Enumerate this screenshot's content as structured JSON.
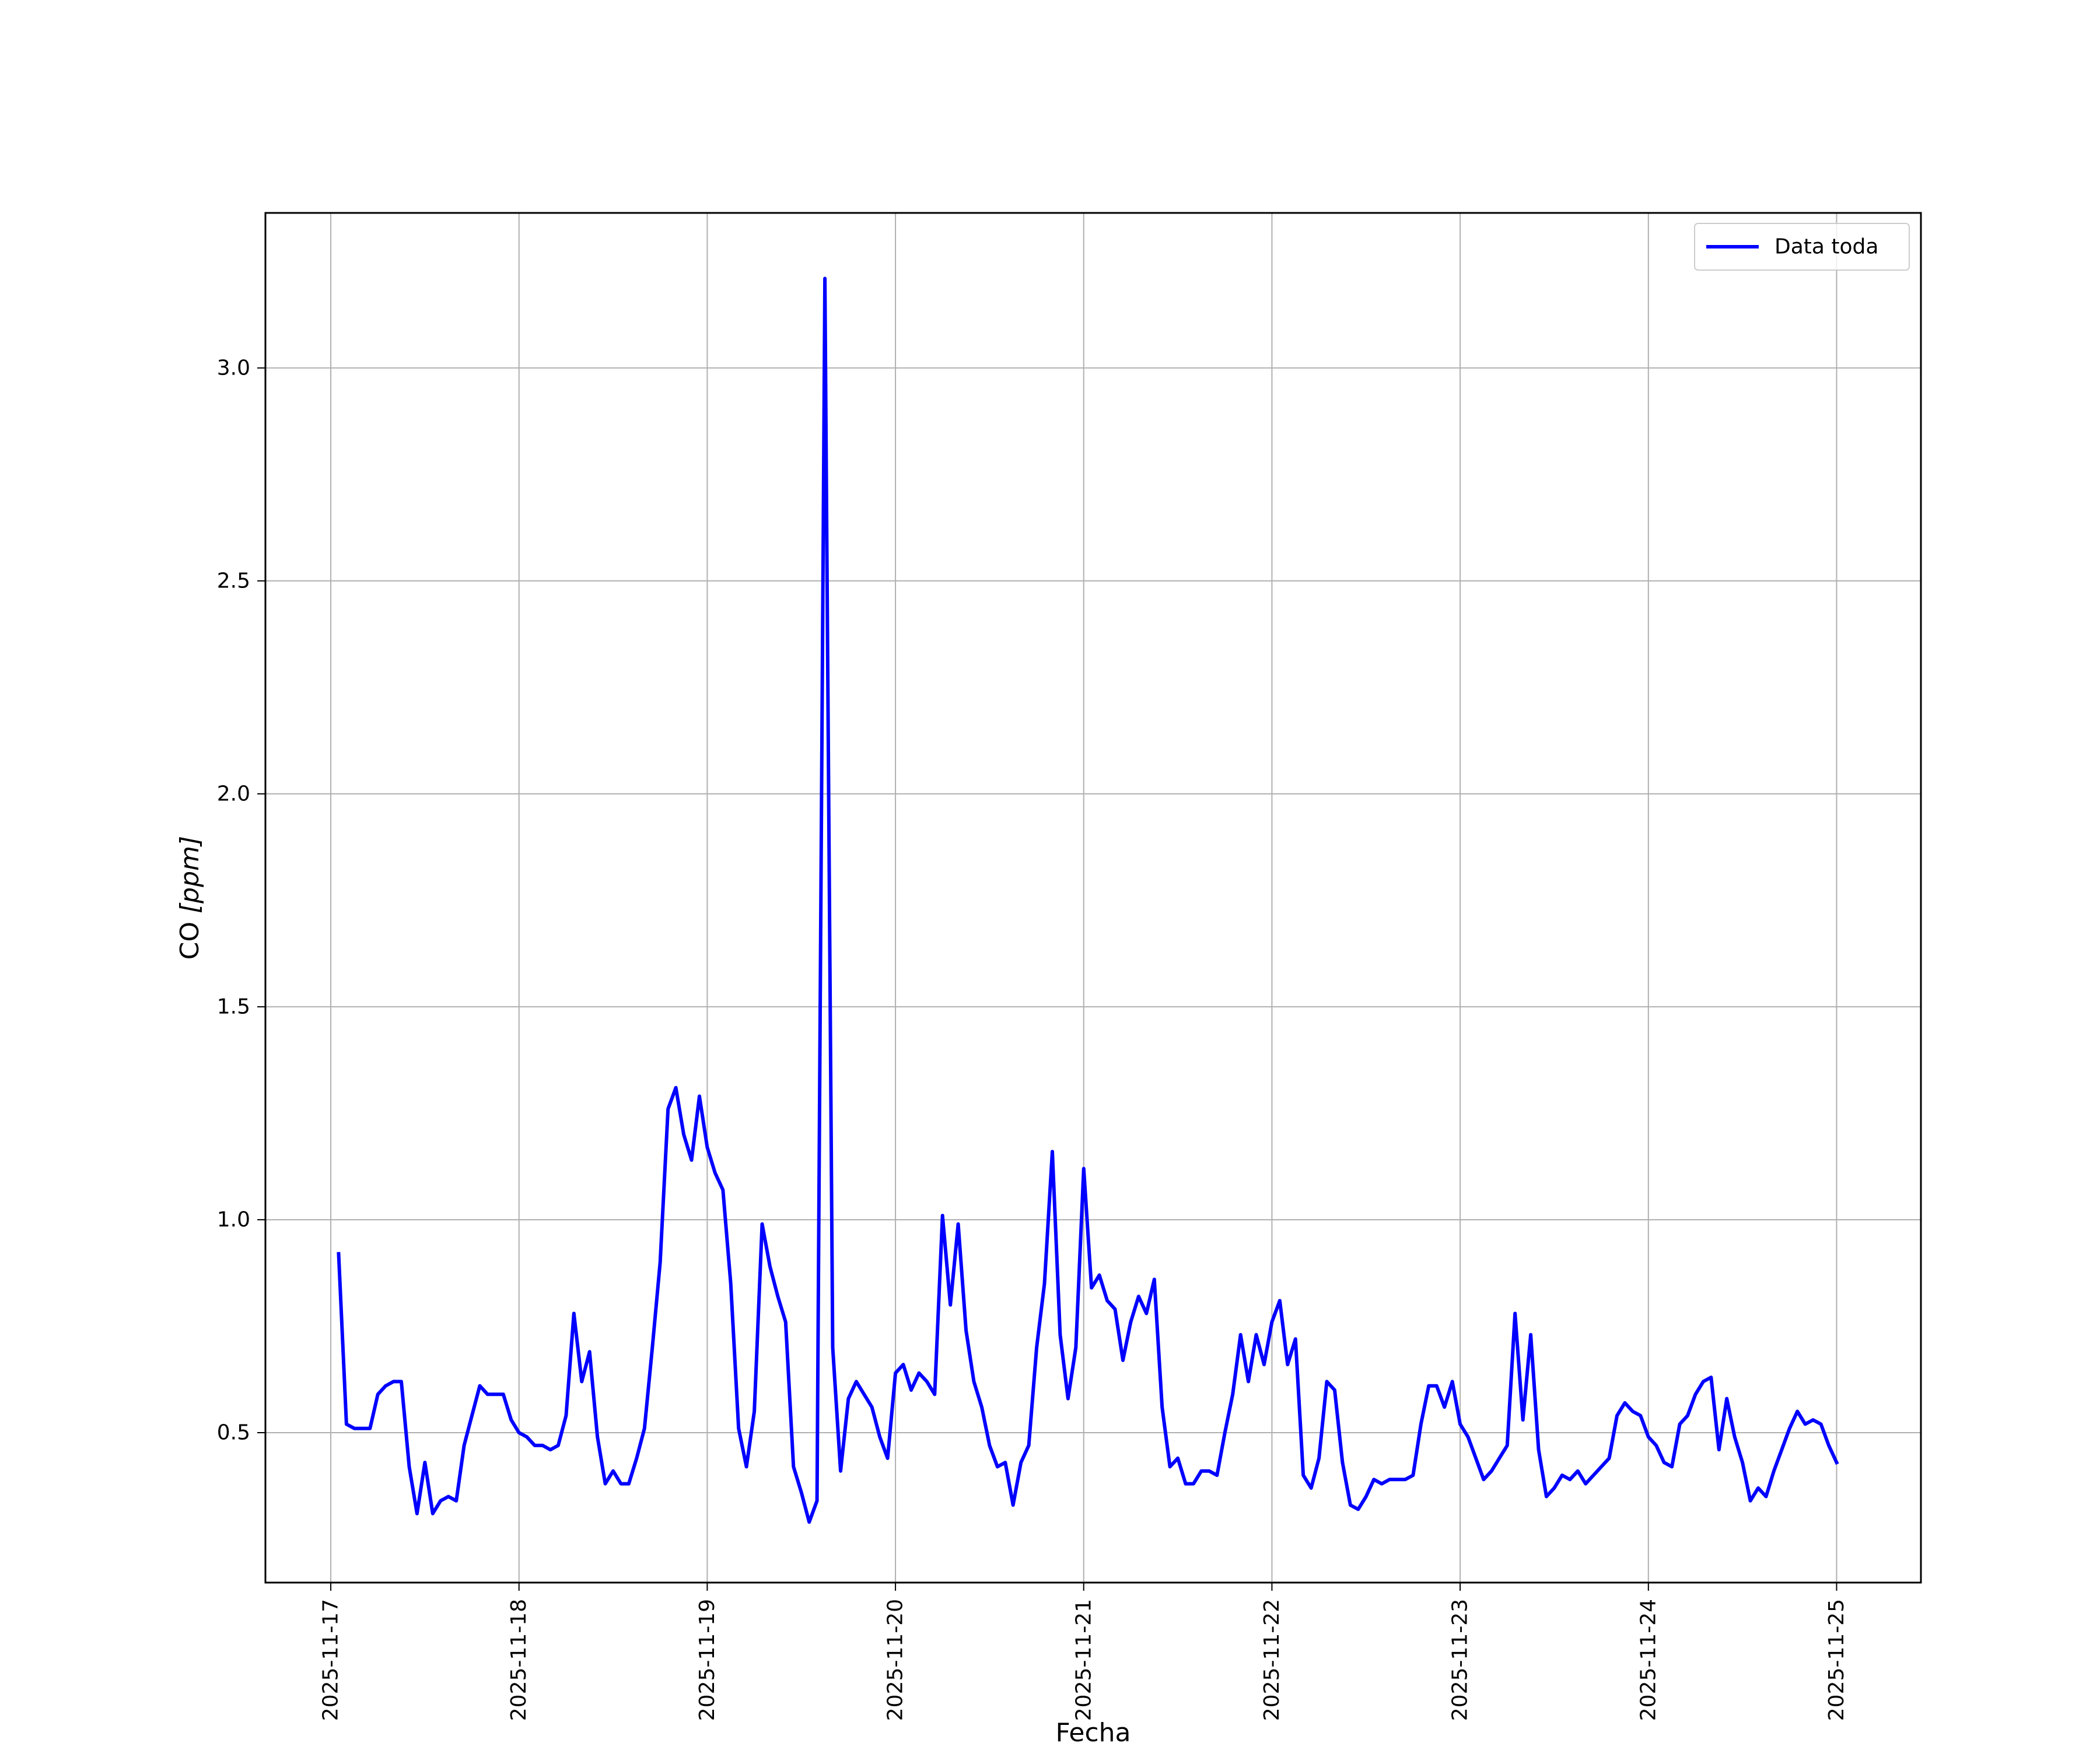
{
  "chart_data": {
    "type": "line",
    "title": "",
    "xlabel": "Fecha",
    "ylabel_main": "CO ",
    "ylabel_unit": "[ppm]",
    "x_ticks": [
      "2025-11-17",
      "2025-11-18",
      "2025-11-19",
      "2025-11-20",
      "2025-11-21",
      "2025-11-22",
      "2025-11-23",
      "2025-11-24",
      "2025-11-25"
    ],
    "y_ticks": [
      "0.5",
      "1.0",
      "1.5",
      "2.0",
      "2.5",
      "3.0"
    ],
    "xlim": [
      "2025-11-16 15:40",
      "2025-11-25 10:45"
    ],
    "ylim": [
      0.148,
      3.364
    ],
    "grid": true,
    "legend": {
      "position": "top-right"
    },
    "series": [
      {
        "name": "Data toda",
        "color": "#0000ff",
        "x": [
          "2025-11-17 01:00",
          "2025-11-17 02:00",
          "2025-11-17 03:00",
          "2025-11-17 04:00",
          "2025-11-17 05:00",
          "2025-11-17 06:00",
          "2025-11-17 07:00",
          "2025-11-17 08:00",
          "2025-11-17 09:00",
          "2025-11-17 10:00",
          "2025-11-17 11:00",
          "2025-11-17 12:00",
          "2025-11-17 13:00",
          "2025-11-17 14:00",
          "2025-11-17 15:00",
          "2025-11-17 16:00",
          "2025-11-17 17:00",
          "2025-11-17 18:00",
          "2025-11-17 19:00",
          "2025-11-17 20:00",
          "2025-11-17 21:00",
          "2025-11-17 22:00",
          "2025-11-17 23:00",
          "2025-11-18 00:00",
          "2025-11-18 01:00",
          "2025-11-18 02:00",
          "2025-11-18 03:00",
          "2025-11-18 04:00",
          "2025-11-18 05:00",
          "2025-11-18 06:00",
          "2025-11-18 07:00",
          "2025-11-18 08:00",
          "2025-11-18 09:00",
          "2025-11-18 10:00",
          "2025-11-18 11:00",
          "2025-11-18 12:00",
          "2025-11-18 13:00",
          "2025-11-18 14:00",
          "2025-11-18 15:00",
          "2025-11-18 16:00",
          "2025-11-18 17:00",
          "2025-11-18 18:00",
          "2025-11-18 19:00",
          "2025-11-18 20:00",
          "2025-11-18 21:00",
          "2025-11-18 22:00",
          "2025-11-18 23:00",
          "2025-11-19 00:00",
          "2025-11-19 01:00",
          "2025-11-19 02:00",
          "2025-11-19 03:00",
          "2025-11-19 04:00",
          "2025-11-19 05:00",
          "2025-11-19 06:00",
          "2025-11-19 07:00",
          "2025-11-19 08:00",
          "2025-11-19 09:00",
          "2025-11-19 10:00",
          "2025-11-19 11:00",
          "2025-11-19 12:00",
          "2025-11-19 13:00",
          "2025-11-19 14:00",
          "2025-11-19 15:00",
          "2025-11-19 16:00",
          "2025-11-19 17:00",
          "2025-11-19 18:00",
          "2025-11-19 19:00",
          "2025-11-19 20:00",
          "2025-11-19 21:00",
          "2025-11-19 22:00",
          "2025-11-19 23:00",
          "2025-11-20 00:00",
          "2025-11-20 01:00",
          "2025-11-20 02:00",
          "2025-11-20 03:00",
          "2025-11-20 04:00",
          "2025-11-20 05:00",
          "2025-11-20 06:00",
          "2025-11-20 07:00",
          "2025-11-20 08:00",
          "2025-11-20 09:00",
          "2025-11-20 10:00",
          "2025-11-20 11:00",
          "2025-11-20 12:00",
          "2025-11-20 13:00",
          "2025-11-20 14:00",
          "2025-11-20 15:00",
          "2025-11-20 16:00",
          "2025-11-20 17:00",
          "2025-11-20 18:00",
          "2025-11-20 19:00",
          "2025-11-20 20:00",
          "2025-11-20 21:00",
          "2025-11-20 22:00",
          "2025-11-20 23:00",
          "2025-11-21 00:00",
          "2025-11-21 01:00",
          "2025-11-21 02:00",
          "2025-11-21 03:00",
          "2025-11-21 04:00",
          "2025-11-21 05:00",
          "2025-11-21 06:00",
          "2025-11-21 07:00",
          "2025-11-21 08:00",
          "2025-11-21 09:00",
          "2025-11-21 10:00",
          "2025-11-21 11:00",
          "2025-11-21 12:00",
          "2025-11-21 13:00",
          "2025-11-21 14:00",
          "2025-11-21 15:00",
          "2025-11-21 16:00",
          "2025-11-21 17:00",
          "2025-11-21 18:00",
          "2025-11-21 19:00",
          "2025-11-21 20:00",
          "2025-11-21 21:00",
          "2025-11-21 22:00",
          "2025-11-21 23:00",
          "2025-11-22 00:00",
          "2025-11-22 01:00",
          "2025-11-22 02:00",
          "2025-11-22 03:00",
          "2025-11-22 04:00",
          "2025-11-22 05:00",
          "2025-11-22 06:00",
          "2025-11-22 07:00",
          "2025-11-22 08:00",
          "2025-11-22 09:00",
          "2025-11-22 10:00",
          "2025-11-22 11:00",
          "2025-11-22 12:00",
          "2025-11-22 13:00",
          "2025-11-22 14:00",
          "2025-11-22 15:00",
          "2025-11-22 16:00",
          "2025-11-22 17:00",
          "2025-11-22 18:00",
          "2025-11-22 19:00",
          "2025-11-22 20:00",
          "2025-11-22 21:00",
          "2025-11-22 22:00",
          "2025-11-22 23:00",
          "2025-11-23 00:00",
          "2025-11-23 01:00",
          "2025-11-23 02:00",
          "2025-11-23 03:00",
          "2025-11-23 04:00",
          "2025-11-23 05:00",
          "2025-11-23 06:00",
          "2025-11-23 07:00",
          "2025-11-23 08:00",
          "2025-11-23 09:00",
          "2025-11-23 10:00",
          "2025-11-23 11:00",
          "2025-11-23 12:00",
          "2025-11-23 13:00",
          "2025-11-23 14:00",
          "2025-11-23 15:00",
          "2025-11-23 16:00",
          "2025-11-23 17:00",
          "2025-11-23 18:00",
          "2025-11-23 19:00",
          "2025-11-23 20:00",
          "2025-11-23 21:00",
          "2025-11-23 22:00",
          "2025-11-23 23:00",
          "2025-11-24 00:00",
          "2025-11-24 01:00",
          "2025-11-24 02:00",
          "2025-11-24 03:00",
          "2025-11-24 04:00",
          "2025-11-24 05:00",
          "2025-11-24 06:00",
          "2025-11-24 07:00",
          "2025-11-24 08:00",
          "2025-11-24 09:00",
          "2025-11-24 10:00",
          "2025-11-24 11:00",
          "2025-11-24 12:00",
          "2025-11-24 13:00",
          "2025-11-24 14:00",
          "2025-11-24 15:00",
          "2025-11-24 16:00",
          "2025-11-24 17:00",
          "2025-11-24 18:00",
          "2025-11-24 19:00",
          "2025-11-24 20:00",
          "2025-11-24 21:00",
          "2025-11-24 22:00",
          "2025-11-24 23:00",
          "2025-11-25 00:00"
        ],
        "y": [
          0.92,
          0.52,
          0.51,
          0.51,
          0.51,
          0.59,
          0.61,
          0.62,
          0.62,
          0.42,
          0.31,
          0.43,
          0.31,
          0.34,
          0.35,
          0.34,
          0.47,
          0.54,
          0.61,
          0.59,
          0.59,
          0.59,
          0.53,
          0.5,
          0.49,
          0.47,
          0.47,
          0.46,
          0.47,
          0.54,
          0.78,
          0.62,
          0.69,
          0.49,
          0.38,
          0.41,
          0.38,
          0.38,
          0.44,
          0.51,
          0.7,
          0.9,
          1.26,
          1.31,
          1.2,
          1.14,
          1.29,
          1.17,
          1.11,
          1.07,
          0.85,
          0.51,
          0.42,
          0.55,
          0.99,
          0.89,
          0.82,
          0.76,
          0.42,
          0.36,
          0.29,
          0.34,
          3.21,
          0.7,
          0.41,
          0.58,
          0.62,
          0.59,
          0.56,
          0.49,
          0.44,
          0.64,
          0.66,
          0.6,
          0.64,
          0.62,
          0.59,
          1.01,
          0.8,
          0.99,
          0.74,
          0.62,
          0.56,
          0.47,
          0.42,
          0.43,
          0.33,
          0.43,
          0.47,
          0.7,
          0.85,
          1.16,
          0.73,
          0.58,
          0.7,
          1.12,
          0.84,
          0.87,
          0.81,
          0.79,
          0.67,
          0.76,
          0.82,
          0.78,
          0.86,
          0.56,
          0.42,
          0.44,
          0.38,
          0.38,
          0.41,
          0.41,
          0.4,
          0.5,
          0.59,
          0.73,
          0.62,
          0.73,
          0.66,
          0.76,
          0.81,
          0.66,
          0.72,
          0.4,
          0.37,
          0.44,
          0.62,
          0.6,
          0.43,
          0.33,
          0.32,
          0.35,
          0.39,
          0.38,
          0.39,
          0.39,
          0.39,
          0.4,
          0.52,
          0.61,
          0.61,
          0.56,
          0.62,
          0.52,
          0.49,
          0.44,
          0.39,
          0.41,
          0.44,
          0.47,
          0.78,
          0.53,
          0.73,
          0.46,
          0.35,
          0.37,
          0.4,
          0.39,
          0.41,
          0.38,
          0.4,
          0.42,
          0.44,
          0.54,
          0.57,
          0.55,
          0.54,
          0.49,
          0.47,
          0.43,
          0.42,
          0.52,
          0.54,
          0.59,
          0.62,
          0.63,
          0.46,
          0.58,
          0.49,
          0.43,
          0.34,
          0.37,
          0.35,
          0.41,
          0.46,
          0.51,
          0.55,
          0.52,
          0.53,
          0.52,
          0.47,
          0.43
        ]
      }
    ]
  }
}
